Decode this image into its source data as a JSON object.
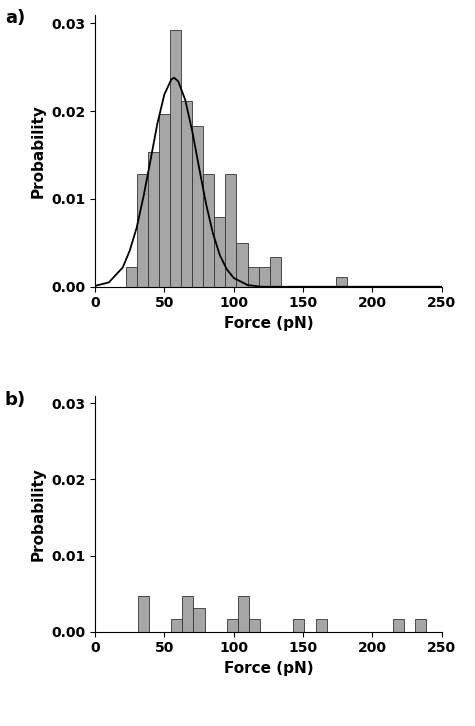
{
  "chart_data": [
    {
      "type": "histogram",
      "title": "a)",
      "x_label": "Force (pN)",
      "y_label": "Probability",
      "xlim": [
        0,
        250
      ],
      "ylim": [
        0,
        0.031
      ],
      "xticks": [
        0,
        50,
        100,
        150,
        200,
        250
      ],
      "yticks": [
        {
          "value": 0.0,
          "label": "0.00"
        },
        {
          "value": 0.01,
          "label": "0.01"
        },
        {
          "value": 0.02,
          "label": "0.02"
        },
        {
          "value": 0.03,
          "label": "0.03"
        }
      ],
      "series": [
        {
          "type": "histogram",
          "color": "#a6a6a6",
          "bins": [
            22,
            30,
            38,
            46,
            54,
            62,
            70,
            78,
            86,
            94,
            102,
            110,
            118,
            126,
            134,
            142,
            150,
            158,
            166,
            174,
            182
          ],
          "counts": [
            0.0022,
            0.0128,
            0.0153,
            0.0197,
            0.0292,
            0.0212,
            0.0183,
            0.0128,
            0.008,
            0.0128,
            0.005,
            0.0022,
            0.0022,
            0.0034,
            0,
            0,
            0,
            0,
            0,
            0.0011
          ]
        },
        {
          "type": "line",
          "color": "#000000",
          "x": [
            0,
            10,
            20,
            25,
            30,
            35,
            40,
            45,
            50,
            55,
            57,
            60,
            65,
            70,
            75,
            80,
            85,
            90,
            95,
            100,
            110,
            120,
            150,
            200,
            250
          ],
          "values": [
            0.0001,
            0.0005,
            0.0022,
            0.0041,
            0.0067,
            0.0103,
            0.0144,
            0.0186,
            0.0219,
            0.0236,
            0.0238,
            0.0234,
            0.0213,
            0.0178,
            0.0136,
            0.0095,
            0.0061,
            0.0036,
            0.002,
            0.001,
            0.0002,
            0.0,
            0.0,
            0.0,
            0.0
          ]
        }
      ]
    },
    {
      "type": "histogram",
      "title": "b)",
      "x_label": "Force (pN)",
      "y_label": "Probability",
      "xlim": [
        0,
        250
      ],
      "ylim": [
        0,
        0.031
      ],
      "xticks": [
        0,
        50,
        100,
        150,
        200,
        250
      ],
      "yticks": [
        {
          "value": 0.0,
          "label": "0.00"
        },
        {
          "value": 0.01,
          "label": "0.01"
        },
        {
          "value": 0.02,
          "label": "0.02"
        },
        {
          "value": 0.03,
          "label": "0.03"
        }
      ],
      "series": [
        {
          "type": "histogram",
          "color": "#a6a6a6",
          "bins": [
            31,
            39,
            47,
            55,
            63,
            71,
            79,
            87,
            95,
            103,
            111,
            119,
            127,
            135,
            143,
            151,
            159,
            167,
            175,
            183,
            191,
            199,
            207,
            215,
            223,
            231,
            239,
            247
          ],
          "counts": [
            0.0047,
            0,
            0,
            0.0016,
            0.0047,
            0.0031,
            0,
            0,
            0.0016,
            0.0047,
            0.0016,
            0,
            0,
            0,
            0.0016,
            0,
            0.0016,
            0,
            0,
            0,
            0,
            0,
            0,
            0.0016,
            0,
            0.0016,
            0
          ]
        }
      ]
    }
  ]
}
